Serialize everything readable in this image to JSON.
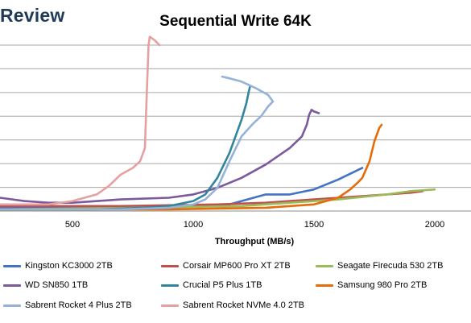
{
  "logo_text": "Review",
  "chart_data": {
    "type": "line",
    "title": "Sequential Write 64K",
    "xlabel": "Throughput (MB/s)",
    "ylabel": "",
    "xlim": [
      200,
      2150
    ],
    "ylim": [
      0,
      100
    ],
    "x_ticks": [
      500,
      1000,
      1500,
      2000
    ],
    "grid": "horizontal",
    "legend_position": "bottom",
    "series": [
      {
        "name": "Kingston KC3000 2TB",
        "color": "#4472c4",
        "x": [
          200,
          600,
          1000,
          1100,
          1150,
          1200,
          1300,
          1400,
          1500,
          1600,
          1700
        ],
        "y": [
          2,
          2,
          3,
          3,
          4,
          6,
          10,
          10,
          13,
          19,
          26
        ]
      },
      {
        "name": "Corsair MP600 Pro XT 2TB",
        "color": "#c0504d",
        "x": [
          200,
          700,
          1100,
          1300,
          1400,
          1500,
          1600,
          1700,
          1800,
          1900,
          1950
        ],
        "y": [
          3,
          3,
          4,
          5,
          6,
          7,
          8,
          9,
          10,
          11,
          12
        ]
      },
      {
        "name": "Seagate Firecuda 530 2TB",
        "color": "#9bbb59",
        "x": [
          200,
          800,
          1200,
          1400,
          1600,
          1800,
          1900,
          2000
        ],
        "y": [
          1,
          2,
          3,
          5,
          7,
          10,
          12,
          13
        ]
      },
      {
        "name": "WD SN850 1TB",
        "color": "#7a5a9d",
        "x": [
          200,
          300,
          400,
          500,
          700,
          900,
          1000,
          1100,
          1200,
          1300,
          1400,
          1450,
          1470,
          1480,
          1490,
          1500,
          1520
        ],
        "y": [
          8,
          6,
          5,
          5,
          7,
          8,
          10,
          14,
          20,
          28,
          38,
          45,
          52,
          58,
          61,
          60,
          59
        ]
      },
      {
        "name": "Crucial P5 Plus 1TB",
        "color": "#31859c",
        "x": [
          200,
          600,
          800,
          900,
          1000,
          1050,
          1100,
          1150,
          1200,
          1220,
          1230,
          1235
        ],
        "y": [
          1,
          1,
          2,
          3,
          6,
          10,
          20,
          35,
          55,
          65,
          72,
          75
        ]
      },
      {
        "name": "Samsung 980 Pro 2TB",
        "color": "#e46c0a",
        "x": [
          200,
          900,
          1300,
          1500,
          1600,
          1650,
          1680,
          1700,
          1730,
          1750,
          1770,
          1780
        ],
        "y": [
          1,
          1,
          2,
          4,
          8,
          13,
          17,
          20,
          30,
          42,
          50,
          52
        ]
      },
      {
        "name": "Sabrent Rocket 4 Plus 2TB",
        "color": "#95b3d7",
        "x": [
          200,
          700,
          900,
          1000,
          1050,
          1100,
          1150,
          1200,
          1250,
          1280,
          1310,
          1330,
          1310,
          1260,
          1200,
          1150,
          1120
        ],
        "y": [
          1,
          1,
          2,
          4,
          7,
          14,
          30,
          45,
          53,
          57,
          63,
          66,
          70,
          74,
          78,
          80,
          81
        ]
      },
      {
        "name": "Sabrent Rocket NVMe 4.0 2TB",
        "color": "#e6a0a0",
        "x": [
          200,
          400,
          500,
          600,
          650,
          700,
          750,
          780,
          800,
          805,
          810,
          815,
          820,
          840,
          860
        ],
        "y": [
          4,
          4,
          6,
          10,
          15,
          22,
          26,
          30,
          38,
          60,
          80,
          100,
          105,
          103,
          100
        ]
      }
    ]
  }
}
